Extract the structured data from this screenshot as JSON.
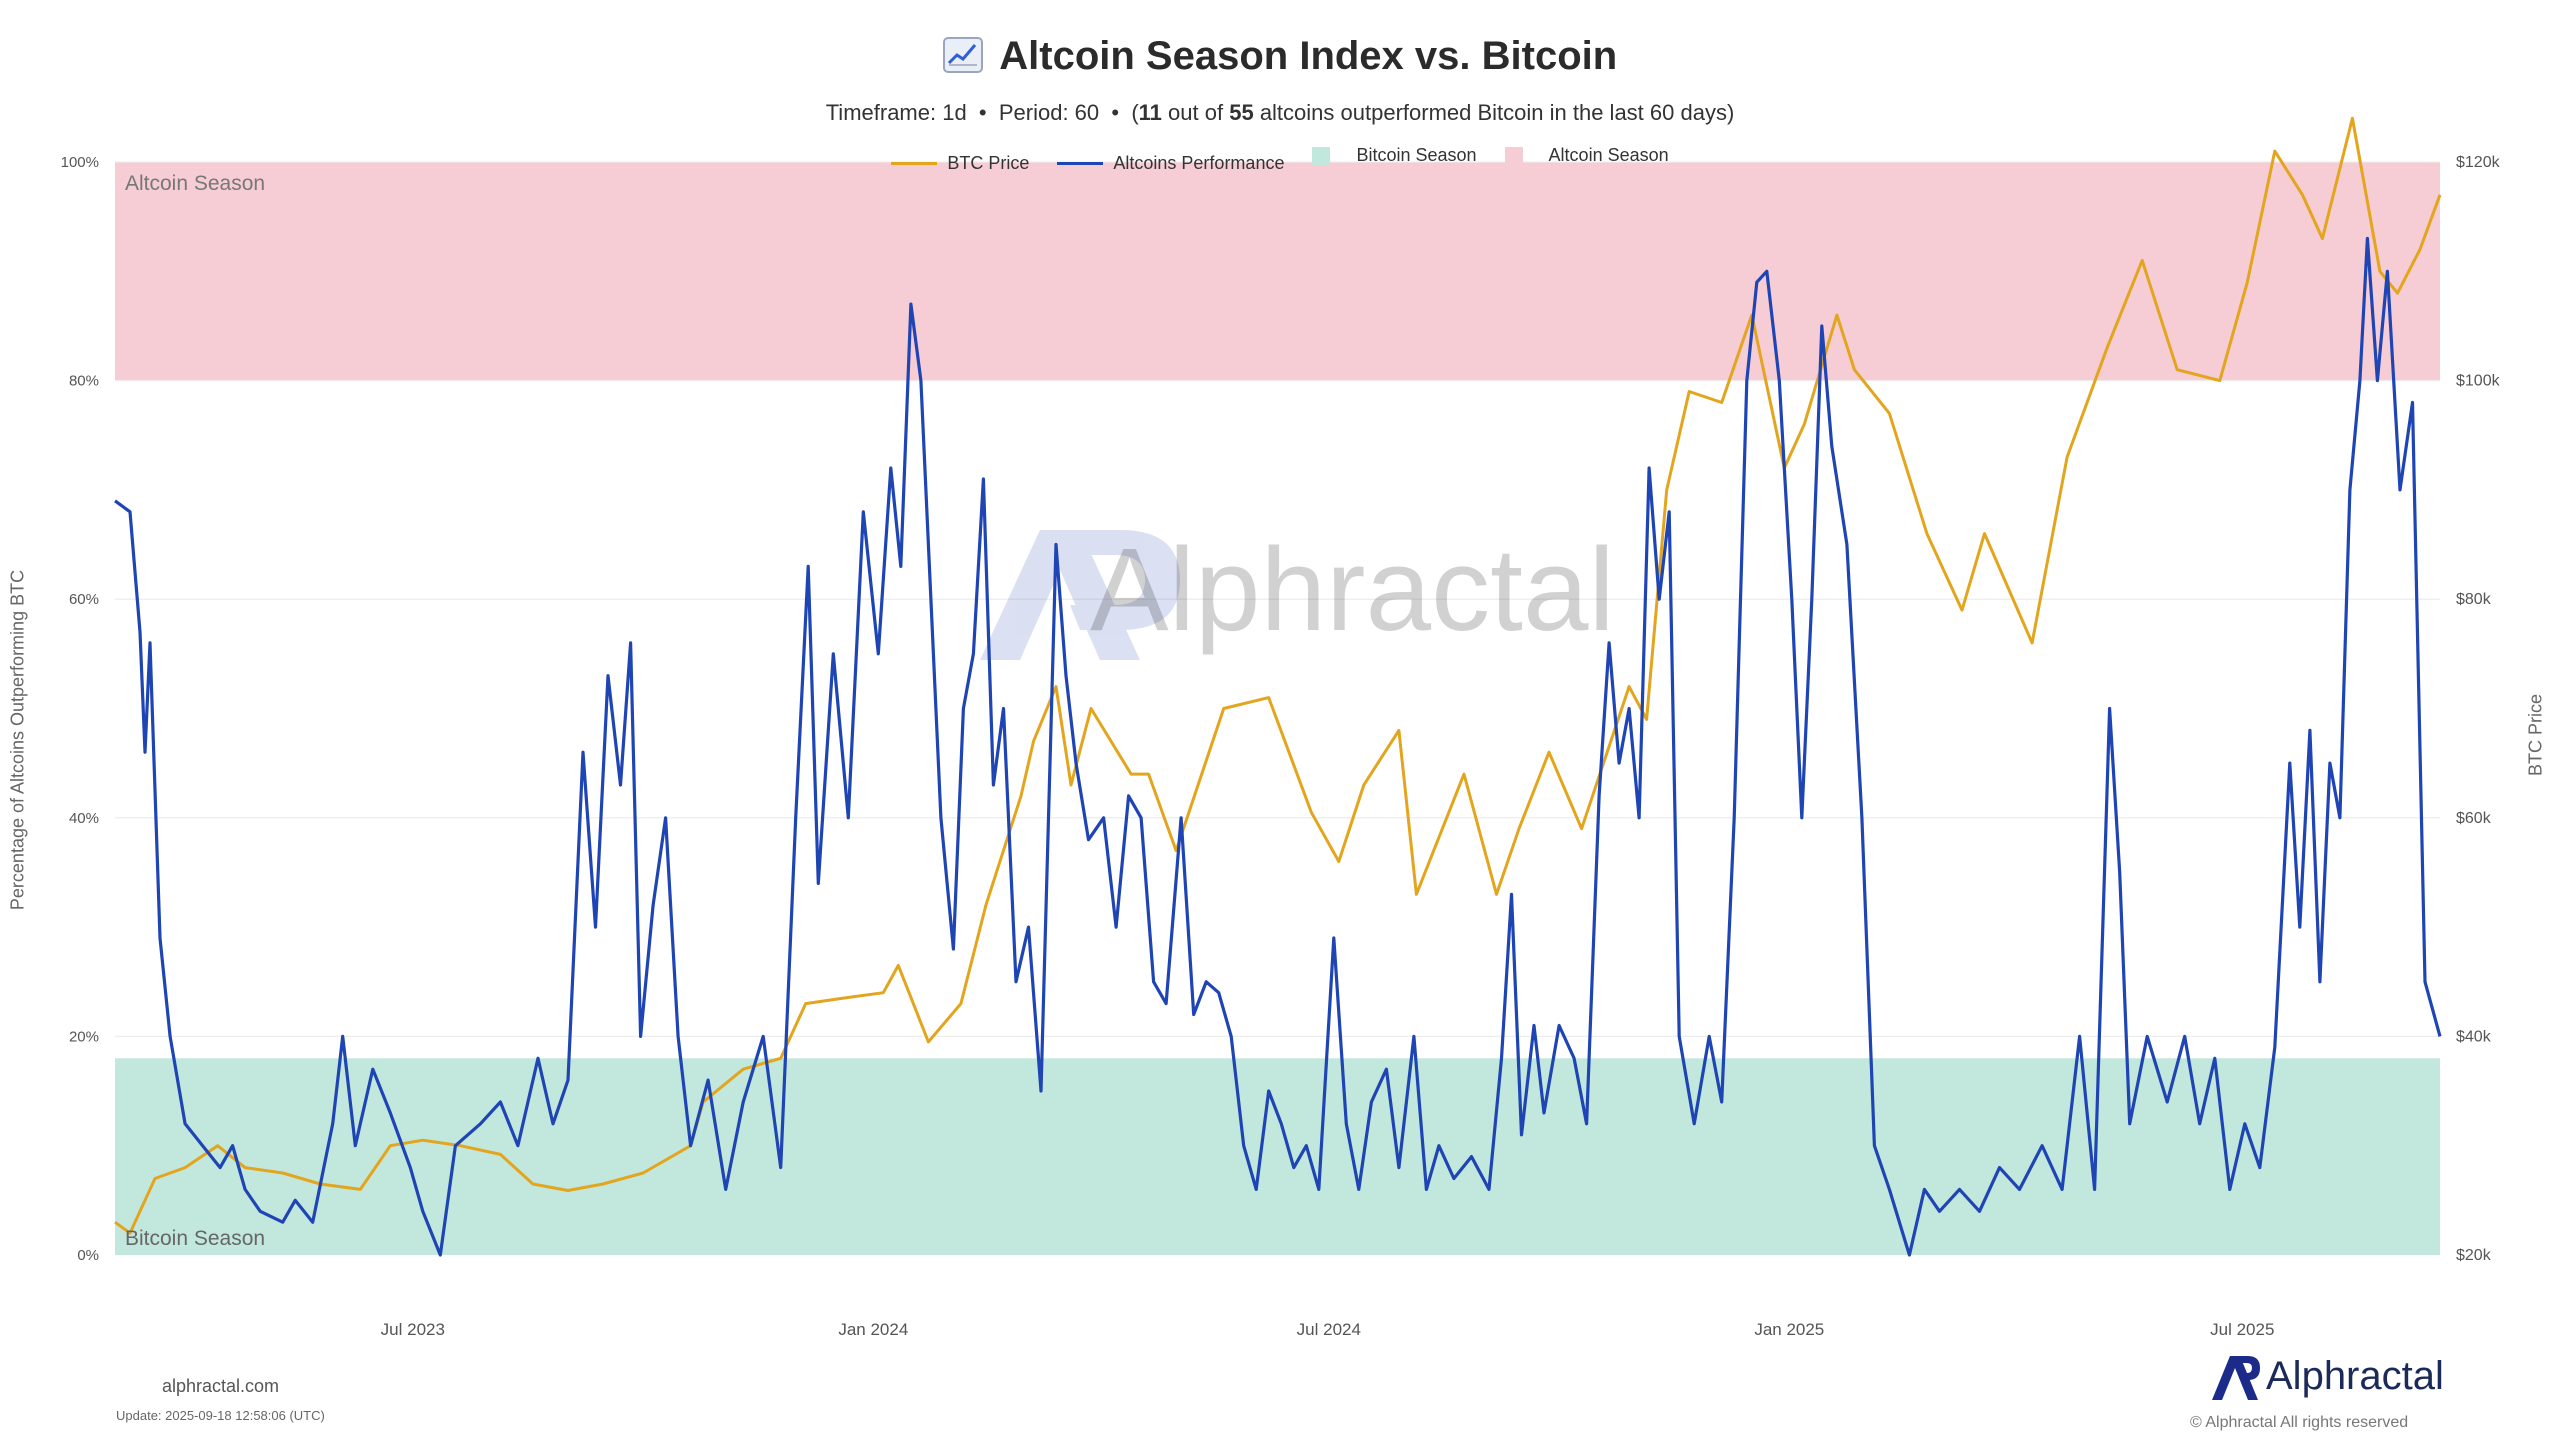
{
  "title": {
    "icon": "chart-increasing-icon",
    "text": "Altcoin Season Index vs. Bitcoin"
  },
  "subtitle": {
    "timeframe": "Timeframe: 1d",
    "period": "Period: 60",
    "count_open": "(",
    "outperformed": "11",
    "out_of": "out of",
    "total": "55",
    "rest": "altcoins outperformed Bitcoin in the last 60 days)"
  },
  "legend": [
    {
      "label": "BTC Price",
      "kind": "line",
      "color": "#e3a51d"
    },
    {
      "label": "Altcoins Performance",
      "kind": "line",
      "color": "#1f45b5"
    },
    {
      "label": "Bitcoin Season",
      "kind": "box",
      "color": "#c2e8dd"
    },
    {
      "label": "Altcoin Season",
      "kind": "box",
      "color": "#f6cdd4"
    }
  ],
  "zones": {
    "altcoin_label": "Altcoin Season",
    "bitcoin_label": "Bitcoin Season",
    "altcoin_range": [
      80,
      100
    ],
    "bitcoin_range": [
      0,
      18
    ]
  },
  "axes": {
    "left_title": "Percentage of Altcoins Outperforming BTC",
    "right_title": "BTC Price",
    "left_ticks": [
      "0%",
      "20%",
      "40%",
      "60%",
      "80%",
      "100%"
    ],
    "right_ticks": [
      "$20k",
      "$40k",
      "$60k",
      "$80k",
      "$100k",
      "$120k"
    ],
    "x_ticks": [
      "Jul 2023",
      "Jan 2024",
      "Jul 2024",
      "Jan 2025",
      "Jul 2025"
    ]
  },
  "watermark": "Alphractal",
  "footer": {
    "site": "alphractal.com",
    "update": "Update: 2025-09-18 12:58:06 (UTC)",
    "brand": "Alphractal",
    "rights": "© Alphractal All rights reserved"
  },
  "chart_data": {
    "type": "line",
    "title": "Altcoin Season Index vs. Bitcoin",
    "x_range": [
      "2023-03-04",
      "2025-09-18"
    ],
    "ylim_left": [
      0,
      100
    ],
    "ylim_right": [
      20000,
      120000
    ],
    "x_tick_dates": [
      "2023-07-01",
      "2024-01-01",
      "2024-07-01",
      "2025-01-01",
      "2025-07-01"
    ],
    "grid": true,
    "legend_position": "top-center",
    "series": [
      {
        "name": "Altcoins Performance",
        "axis": "left",
        "color": "#1f45b5",
        "points": [
          [
            "2023-03-04",
            69
          ],
          [
            "2023-03-10",
            68
          ],
          [
            "2023-03-14",
            57
          ],
          [
            "2023-03-16",
            46
          ],
          [
            "2023-03-18",
            56
          ],
          [
            "2023-03-22",
            29
          ],
          [
            "2023-03-26",
            20
          ],
          [
            "2023-04-01",
            12
          ],
          [
            "2023-04-08",
            10
          ],
          [
            "2023-04-15",
            8
          ],
          [
            "2023-04-20",
            10
          ],
          [
            "2023-04-25",
            6
          ],
          [
            "2023-05-01",
            4
          ],
          [
            "2023-05-10",
            3
          ],
          [
            "2023-05-15",
            5
          ],
          [
            "2023-05-22",
            3
          ],
          [
            "2023-05-30",
            12
          ],
          [
            "2023-06-03",
            20
          ],
          [
            "2023-06-08",
            10
          ],
          [
            "2023-06-15",
            17
          ],
          [
            "2023-06-22",
            13
          ],
          [
            "2023-06-30",
            8
          ],
          [
            "2023-07-05",
            4
          ],
          [
            "2023-07-12",
            0
          ],
          [
            "2023-07-18",
            10
          ],
          [
            "2023-07-28",
            12
          ],
          [
            "2023-08-05",
            14
          ],
          [
            "2023-08-12",
            10
          ],
          [
            "2023-08-20",
            18
          ],
          [
            "2023-08-26",
            12
          ],
          [
            "2023-09-01",
            16
          ],
          [
            "2023-09-07",
            46
          ],
          [
            "2023-09-12",
            30
          ],
          [
            "2023-09-17",
            53
          ],
          [
            "2023-09-22",
            43
          ],
          [
            "2023-09-26",
            56
          ],
          [
            "2023-09-30",
            20
          ],
          [
            "2023-10-05",
            32
          ],
          [
            "2023-10-10",
            40
          ],
          [
            "2023-10-15",
            20
          ],
          [
            "2023-10-20",
            10
          ],
          [
            "2023-10-27",
            16
          ],
          [
            "2023-11-03",
            6
          ],
          [
            "2023-11-10",
            14
          ],
          [
            "2023-11-18",
            20
          ],
          [
            "2023-11-25",
            8
          ],
          [
            "2023-12-01",
            40
          ],
          [
            "2023-12-06",
            63
          ],
          [
            "2023-12-10",
            34
          ],
          [
            "2023-12-16",
            55
          ],
          [
            "2023-12-22",
            40
          ],
          [
            "2023-12-28",
            68
          ],
          [
            "2024-01-03",
            55
          ],
          [
            "2024-01-08",
            72
          ],
          [
            "2024-01-12",
            63
          ],
          [
            "2024-01-16",
            87
          ],
          [
            "2024-01-20",
            80
          ],
          [
            "2024-01-24",
            60
          ],
          [
            "2024-01-28",
            40
          ],
          [
            "2024-02-02",
            28
          ],
          [
            "2024-02-06",
            50
          ],
          [
            "2024-02-10",
            55
          ],
          [
            "2024-02-14",
            71
          ],
          [
            "2024-02-18",
            43
          ],
          [
            "2024-02-22",
            50
          ],
          [
            "2024-02-27",
            25
          ],
          [
            "2024-03-03",
            30
          ],
          [
            "2024-03-08",
            15
          ],
          [
            "2024-03-14",
            65
          ],
          [
            "2024-03-18",
            53
          ],
          [
            "2024-03-22",
            45
          ],
          [
            "2024-03-27",
            38
          ],
          [
            "2024-04-02",
            40
          ],
          [
            "2024-04-07",
            30
          ],
          [
            "2024-04-12",
            42
          ],
          [
            "2024-04-17",
            40
          ],
          [
            "2024-04-22",
            25
          ],
          [
            "2024-04-27",
            23
          ],
          [
            "2024-05-03",
            40
          ],
          [
            "2024-05-08",
            22
          ],
          [
            "2024-05-13",
            25
          ],
          [
            "2024-05-18",
            24
          ],
          [
            "2024-05-23",
            20
          ],
          [
            "2024-05-28",
            10
          ],
          [
            "2024-06-02",
            6
          ],
          [
            "2024-06-07",
            15
          ],
          [
            "2024-06-12",
            12
          ],
          [
            "2024-06-17",
            8
          ],
          [
            "2024-06-22",
            10
          ],
          [
            "2024-06-27",
            6
          ],
          [
            "2024-07-03",
            29
          ],
          [
            "2024-07-08",
            12
          ],
          [
            "2024-07-13",
            6
          ],
          [
            "2024-07-18",
            14
          ],
          [
            "2024-07-24",
            17
          ],
          [
            "2024-07-29",
            8
          ],
          [
            "2024-08-04",
            20
          ],
          [
            "2024-08-09",
            6
          ],
          [
            "2024-08-14",
            10
          ],
          [
            "2024-08-20",
            7
          ],
          [
            "2024-08-27",
            9
          ],
          [
            "2024-09-03",
            6
          ],
          [
            "2024-09-08",
            18
          ],
          [
            "2024-09-12",
            33
          ],
          [
            "2024-09-16",
            11
          ],
          [
            "2024-09-21",
            21
          ],
          [
            "2024-09-25",
            13
          ],
          [
            "2024-10-01",
            21
          ],
          [
            "2024-10-07",
            18
          ],
          [
            "2024-10-12",
            12
          ],
          [
            "2024-10-17",
            42
          ],
          [
            "2024-10-21",
            56
          ],
          [
            "2024-10-25",
            45
          ],
          [
            "2024-10-29",
            50
          ],
          [
            "2024-11-02",
            40
          ],
          [
            "2024-11-06",
            72
          ],
          [
            "2024-11-10",
            60
          ],
          [
            "2024-11-14",
            68
          ],
          [
            "2024-11-18",
            20
          ],
          [
            "2024-11-24",
            12
          ],
          [
            "2024-11-30",
            20
          ],
          [
            "2024-12-05",
            14
          ],
          [
            "2024-12-10",
            40
          ],
          [
            "2024-12-15",
            80
          ],
          [
            "2024-12-19",
            89
          ],
          [
            "2024-12-23",
            90
          ],
          [
            "2024-12-28",
            80
          ],
          [
            "2025-01-02",
            60
          ],
          [
            "2025-01-06",
            40
          ],
          [
            "2025-01-10",
            60
          ],
          [
            "2025-01-14",
            85
          ],
          [
            "2025-01-18",
            74
          ],
          [
            "2025-01-24",
            65
          ],
          [
            "2025-01-30",
            40
          ],
          [
            "2025-02-04",
            10
          ],
          [
            "2025-02-10",
            6
          ],
          [
            "2025-02-18",
            0
          ],
          [
            "2025-02-24",
            6
          ],
          [
            "2025-03-02",
            4
          ],
          [
            "2025-03-10",
            6
          ],
          [
            "2025-03-18",
            4
          ],
          [
            "2025-03-26",
            8
          ],
          [
            "2025-04-03",
            6
          ],
          [
            "2025-04-12",
            10
          ],
          [
            "2025-04-20",
            6
          ],
          [
            "2025-04-27",
            20
          ],
          [
            "2025-05-03",
            6
          ],
          [
            "2025-05-09",
            50
          ],
          [
            "2025-05-13",
            35
          ],
          [
            "2025-05-17",
            12
          ],
          [
            "2025-05-24",
            20
          ],
          [
            "2025-06-01",
            14
          ],
          [
            "2025-06-08",
            20
          ],
          [
            "2025-06-14",
            12
          ],
          [
            "2025-06-20",
            18
          ],
          [
            "2025-06-26",
            6
          ],
          [
            "2025-07-02",
            12
          ],
          [
            "2025-07-08",
            8
          ],
          [
            "2025-07-14",
            19
          ],
          [
            "2025-07-20",
            45
          ],
          [
            "2025-07-24",
            30
          ],
          [
            "2025-07-28",
            48
          ],
          [
            "2025-08-01",
            25
          ],
          [
            "2025-08-05",
            45
          ],
          [
            "2025-08-09",
            40
          ],
          [
            "2025-08-13",
            70
          ],
          [
            "2025-08-17",
            80
          ],
          [
            "2025-08-20",
            93
          ],
          [
            "2025-08-24",
            80
          ],
          [
            "2025-08-28",
            90
          ],
          [
            "2025-09-02",
            70
          ],
          [
            "2025-09-07",
            78
          ],
          [
            "2025-09-12",
            25
          ],
          [
            "2025-09-18",
            20
          ]
        ]
      },
      {
        "name": "BTC Price",
        "axis": "right",
        "color": "#e3a51d",
        "points": [
          [
            "2023-03-04",
            23000
          ],
          [
            "2023-03-10",
            22000
          ],
          [
            "2023-03-14",
            24000
          ],
          [
            "2023-03-20",
            27000
          ],
          [
            "2023-04-01",
            28000
          ],
          [
            "2023-04-14",
            30000
          ],
          [
            "2023-04-25",
            28000
          ],
          [
            "2023-05-10",
            27500
          ],
          [
            "2023-05-25",
            26500
          ],
          [
            "2023-06-10",
            26000
          ],
          [
            "2023-06-22",
            30000
          ],
          [
            "2023-07-05",
            30500
          ],
          [
            "2023-07-20",
            30000
          ],
          [
            "2023-08-05",
            29200
          ],
          [
            "2023-08-18",
            26500
          ],
          [
            "2023-09-01",
            25900
          ],
          [
            "2023-09-15",
            26500
          ],
          [
            "2023-10-01",
            27500
          ],
          [
            "2023-10-20",
            30000
          ],
          [
            "2023-10-25",
            34000
          ],
          [
            "2023-11-10",
            37000
          ],
          [
            "2023-11-25",
            38000
          ],
          [
            "2023-12-05",
            43000
          ],
          [
            "2023-12-20",
            43500
          ],
          [
            "2024-01-05",
            44000
          ],
          [
            "2024-01-11",
            46500
          ],
          [
            "2024-01-23",
            39500
          ],
          [
            "2024-02-05",
            43000
          ],
          [
            "2024-02-15",
            52000
          ],
          [
            "2024-02-29",
            62000
          ],
          [
            "2024-03-05",
            67000
          ],
          [
            "2024-03-14",
            72000
          ],
          [
            "2024-03-20",
            63000
          ],
          [
            "2024-03-28",
            70000
          ],
          [
            "2024-04-13",
            64000
          ],
          [
            "2024-04-20",
            64000
          ],
          [
            "2024-05-01",
            57000
          ],
          [
            "2024-05-20",
            70000
          ],
          [
            "2024-06-07",
            71000
          ],
          [
            "2024-06-24",
            60500
          ],
          [
            "2024-07-05",
            56000
          ],
          [
            "2024-07-15",
            63000
          ],
          [
            "2024-07-29",
            68000
          ],
          [
            "2024-08-05",
            53000
          ],
          [
            "2024-08-24",
            64000
          ],
          [
            "2024-09-06",
            53000
          ],
          [
            "2024-09-15",
            59000
          ],
          [
            "2024-09-27",
            66000
          ],
          [
            "2024-10-10",
            59000
          ],
          [
            "2024-10-29",
            72000
          ],
          [
            "2024-11-05",
            69000
          ],
          [
            "2024-11-13",
            90000
          ],
          [
            "2024-11-22",
            99000
          ],
          [
            "2024-12-05",
            98000
          ],
          [
            "2024-12-17",
            106000
          ],
          [
            "2024-12-30",
            92000
          ],
          [
            "2025-01-07",
            96000
          ],
          [
            "2025-01-20",
            106000
          ],
          [
            "2025-01-27",
            101000
          ],
          [
            "2025-02-10",
            97000
          ],
          [
            "2025-02-25",
            86000
          ],
          [
            "2025-03-11",
            79000
          ],
          [
            "2025-03-20",
            86000
          ],
          [
            "2025-04-08",
            76000
          ],
          [
            "2025-04-22",
            93000
          ],
          [
            "2025-05-08",
            103000
          ],
          [
            "2025-05-22",
            111000
          ],
          [
            "2025-06-05",
            101000
          ],
          [
            "2025-06-22",
            100000
          ],
          [
            "2025-07-03",
            109000
          ],
          [
            "2025-07-14",
            121000
          ],
          [
            "2025-07-25",
            117000
          ],
          [
            "2025-08-02",
            113000
          ],
          [
            "2025-08-14",
            124000
          ],
          [
            "2025-08-25",
            110000
          ],
          [
            "2025-09-01",
            108000
          ],
          [
            "2025-09-10",
            112000
          ],
          [
            "2025-09-18",
            117000
          ]
        ]
      }
    ]
  }
}
